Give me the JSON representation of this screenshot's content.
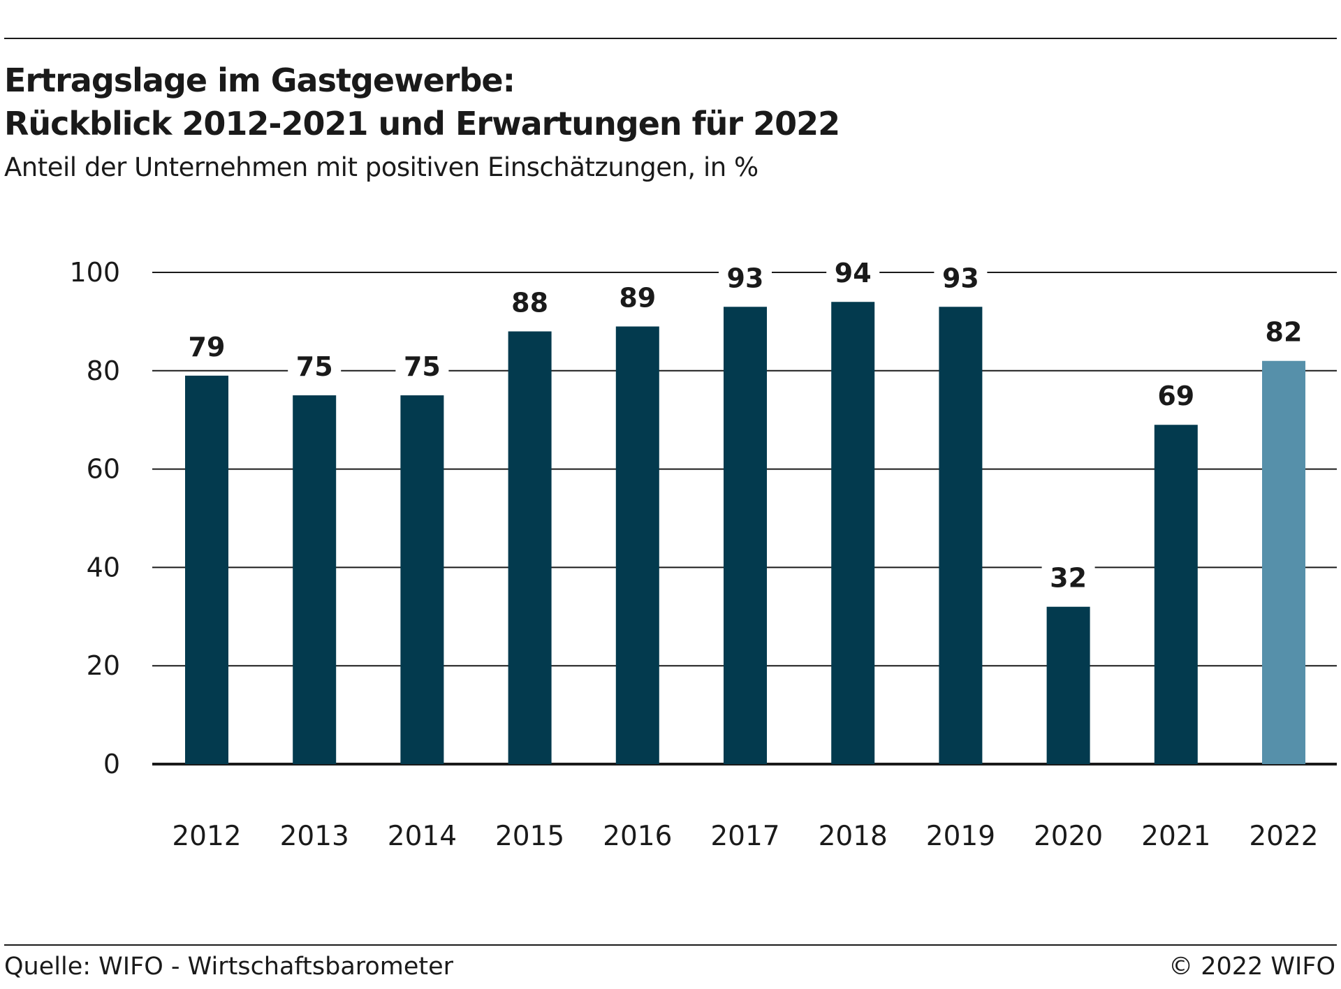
{
  "header": {
    "title_line1": "Ertragslage im Gastgewerbe:",
    "title_line2": "Rückblick 2012-2021 und Erwartungen für 2022",
    "subtitle": "Anteil der Unternehmen mit positiven Einschätzungen, in %"
  },
  "footer": {
    "source": "Quelle: WIFO - Wirtschaftsbarometer",
    "copyright": "© 2022 WIFO"
  },
  "colors": {
    "bar_dark": "#033a4e",
    "bar_light": "#5690aa",
    "text": "#1a1a1a",
    "grid": "#1a1a1a"
  },
  "chart_data": {
    "type": "bar",
    "title": "Ertragslage im Gastgewerbe: Rückblick 2012-2021 und Erwartungen für 2022",
    "subtitle": "Anteil der Unternehmen mit positiven Einschätzungen, in %",
    "xlabel": "",
    "ylabel": "",
    "categories": [
      "2012",
      "2013",
      "2014",
      "2015",
      "2016",
      "2017",
      "2018",
      "2019",
      "2020",
      "2021",
      "2022"
    ],
    "values": [
      79,
      75,
      75,
      88,
      89,
      93,
      94,
      93,
      32,
      69,
      82
    ],
    "data_labels": [
      "79",
      "75",
      "75",
      "88",
      "89",
      "93",
      "94",
      "93",
      "32",
      "69",
      "82"
    ],
    "highlight": [
      false,
      false,
      false,
      false,
      false,
      false,
      false,
      false,
      false,
      false,
      true
    ],
    "ylim": [
      0,
      100
    ],
    "yticks": [
      0,
      20,
      40,
      60,
      80,
      100
    ],
    "ytick_labels": [
      "0",
      "20",
      "40",
      "60",
      "80",
      "100"
    ],
    "grid": true,
    "legend": false
  }
}
